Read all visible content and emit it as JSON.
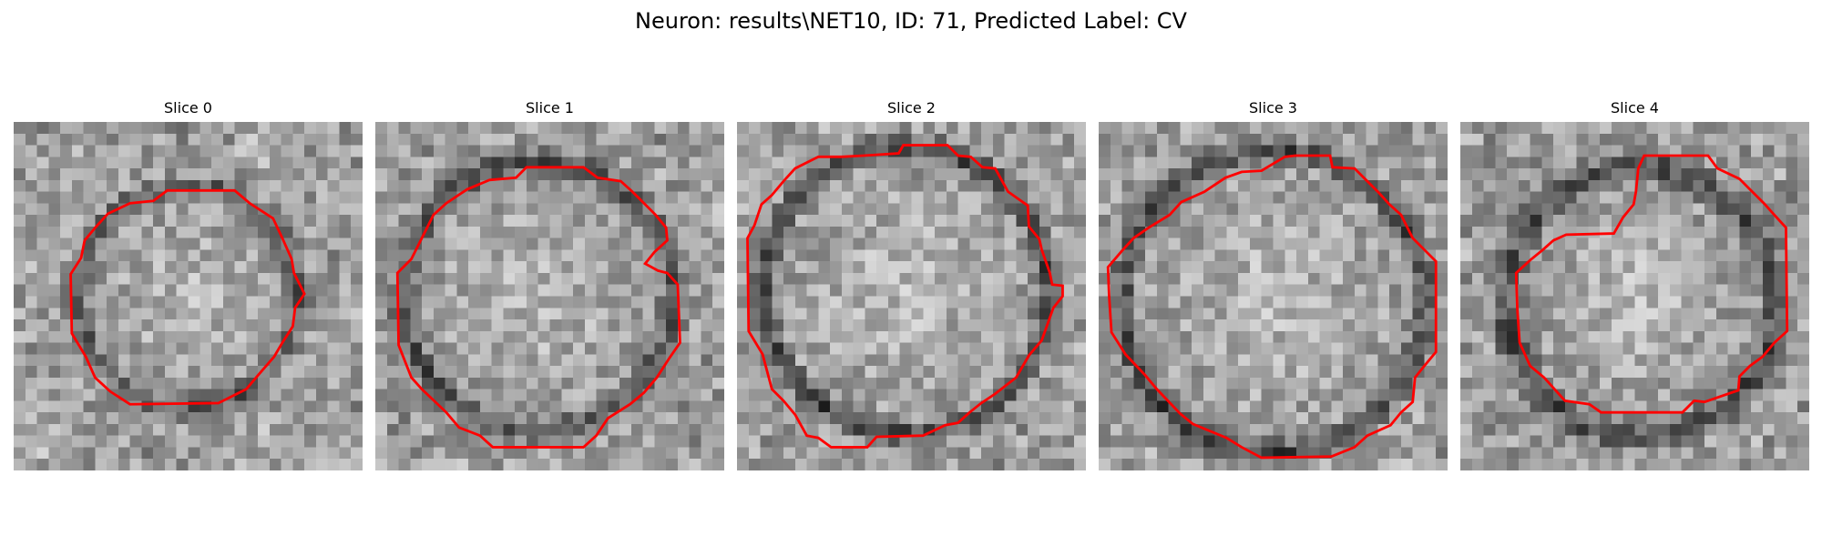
{
  "figure": {
    "title": "Neuron: results\\NET10, ID: 71, Predicted Label: CV"
  },
  "colors": {
    "contour": "#ff0000",
    "background": "#ffffff",
    "colormap": "grayscale"
  },
  "panels": [
    {
      "title": "Slice 0"
    },
    {
      "title": "Slice 1"
    },
    {
      "title": "Slice 2"
    },
    {
      "title": "Slice 3"
    },
    {
      "title": "Slice 4"
    }
  ]
}
